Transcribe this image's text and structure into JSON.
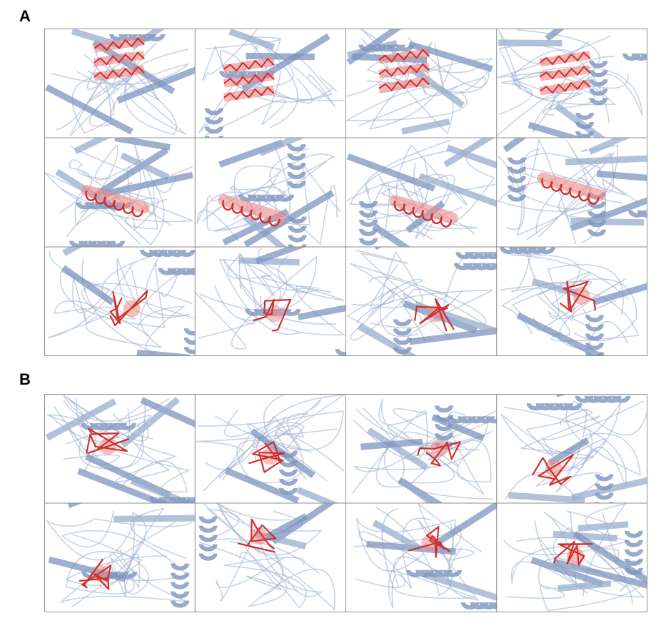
{
  "figure": {
    "panels": [
      {
        "label": "A",
        "rows": 3,
        "cols": 4
      },
      {
        "label": "B",
        "rows": 2,
        "cols": 4
      }
    ],
    "colors": {
      "protein_cartoon": "#9aaed0",
      "protein_cartoon_dark": "#7e95bf",
      "highlight_residue": "#d0302c",
      "highlight_glow": "#f08a88",
      "grid_border": "#8c8c8c"
    }
  }
}
